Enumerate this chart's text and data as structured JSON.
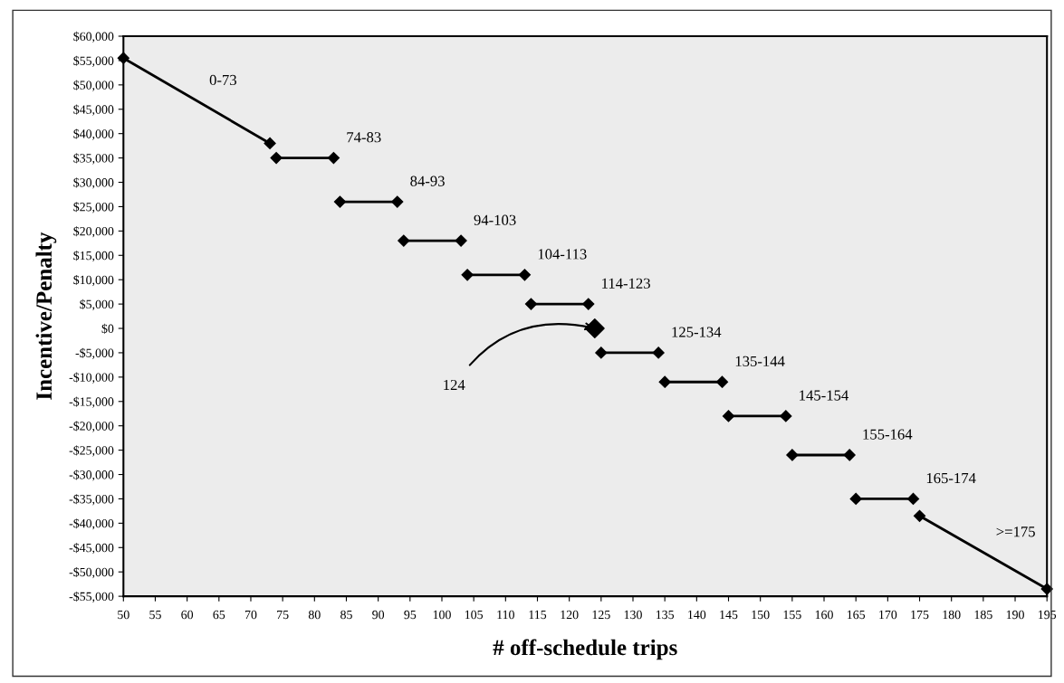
{
  "chart_data": {
    "type": "line",
    "xlabel": "# off-schedule trips",
    "ylabel": "Incentive/Penalty",
    "xlim": [
      50,
      195
    ],
    "ylim": [
      -55000,
      60000
    ],
    "xticks": [
      50,
      55,
      60,
      65,
      70,
      75,
      80,
      85,
      90,
      95,
      100,
      105,
      110,
      115,
      120,
      125,
      130,
      135,
      140,
      145,
      150,
      155,
      160,
      165,
      170,
      175,
      180,
      185,
      190,
      195
    ],
    "yticks": [
      {
        "value": 60000,
        "label": "$60,000"
      },
      {
        "value": 55000,
        "label": "$55,000"
      },
      {
        "value": 50000,
        "label": "$50,000"
      },
      {
        "value": 45000,
        "label": "$45,000"
      },
      {
        "value": 40000,
        "label": "$40,000"
      },
      {
        "value": 35000,
        "label": "$35,000"
      },
      {
        "value": 30000,
        "label": "$30,000"
      },
      {
        "value": 25000,
        "label": "$25,000"
      },
      {
        "value": 20000,
        "label": "$20,000"
      },
      {
        "value": 15000,
        "label": "$15,000"
      },
      {
        "value": 10000,
        "label": "$10,000"
      },
      {
        "value": 5000,
        "label": "$5,000"
      },
      {
        "value": 0,
        "label": "$0"
      },
      {
        "value": -5000,
        "label": "-$5,000"
      },
      {
        "value": -10000,
        "label": "-$10,000"
      },
      {
        "value": -15000,
        "label": "-$15,000"
      },
      {
        "value": -20000,
        "label": "-$20,000"
      },
      {
        "value": -25000,
        "label": "-$25,000"
      },
      {
        "value": -30000,
        "label": "-$30,000"
      },
      {
        "value": -35000,
        "label": "-$35,000"
      },
      {
        "value": -40000,
        "label": "-$40,000"
      },
      {
        "value": -45000,
        "label": "-$45,000"
      },
      {
        "value": -50000,
        "label": "-$50,000"
      },
      {
        "value": -55000,
        "label": "-$55,000"
      }
    ],
    "grid": false,
    "legend": false,
    "marker": "diamond",
    "line_style": "solid",
    "series": [
      {
        "color": "#000000",
        "x": [
          50,
          73
        ],
        "values": [
          55500,
          38000
        ]
      },
      {
        "color": "#000000",
        "x": [
          74,
          83
        ],
        "values": [
          35000,
          35000
        ]
      },
      {
        "color": "#000000",
        "x": [
          84,
          93
        ],
        "values": [
          26000,
          26000
        ]
      },
      {
        "color": "#000000",
        "x": [
          94,
          103
        ],
        "values": [
          18000,
          18000
        ]
      },
      {
        "color": "#000000",
        "x": [
          104,
          113
        ],
        "values": [
          11000,
          11000
        ]
      },
      {
        "color": "#000000",
        "x": [
          114,
          123
        ],
        "values": [
          5000,
          5000
        ]
      },
      {
        "type": "scatter",
        "color": "#000000",
        "x": [
          124
        ],
        "values": [
          0
        ]
      },
      {
        "color": "#000000",
        "x": [
          125,
          134
        ],
        "values": [
          -5000,
          -5000
        ]
      },
      {
        "color": "#000000",
        "x": [
          135,
          144
        ],
        "values": [
          -11000,
          -11000
        ]
      },
      {
        "color": "#000000",
        "x": [
          145,
          154
        ],
        "values": [
          -18000,
          -18000
        ]
      },
      {
        "color": "#000000",
        "x": [
          155,
          164
        ],
        "values": [
          -26000,
          -26000
        ]
      },
      {
        "color": "#000000",
        "x": [
          165,
          174
        ],
        "values": [
          -35000,
          -35000
        ]
      },
      {
        "color": "#000000",
        "x": [
          175,
          195
        ],
        "values": [
          -38500,
          -53500
        ]
      }
    ],
    "annotations": [
      {
        "text": "0-73",
        "x": 61.5,
        "y": 46750
      },
      {
        "text": "74-83",
        "x": 83,
        "y": 35000
      },
      {
        "text": "84-93",
        "x": 93,
        "y": 26000
      },
      {
        "text": "94-103",
        "x": 103,
        "y": 18000
      },
      {
        "text": "104-113",
        "x": 113,
        "y": 11000
      },
      {
        "text": "114-123",
        "x": 123,
        "y": 5000
      },
      {
        "text": "124",
        "x": 124,
        "y": 0
      },
      {
        "text": "125-134",
        "x": 134,
        "y": -5000
      },
      {
        "text": "135-144",
        "x": 144,
        "y": -11000
      },
      {
        "text": "145-154",
        "x": 154,
        "y": -18000
      },
      {
        "text": "155-164",
        "x": 164,
        "y": -26000
      },
      {
        "text": "165-174",
        "x": 174,
        "y": -35000
      },
      {
        "text": ">=175",
        "x": 185,
        "y": -46000
      }
    ]
  }
}
